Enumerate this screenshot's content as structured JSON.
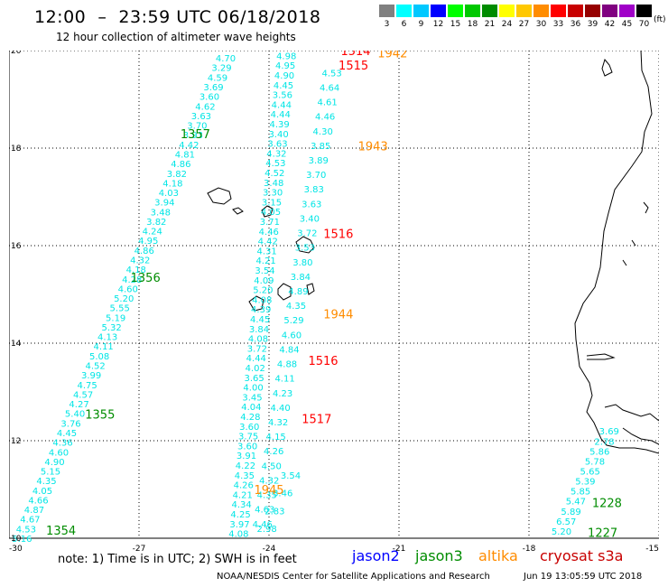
{
  "header": {
    "title": "12:00  –  23:59 UTC 06/18/2018",
    "subtitle": "12 hour collection of altimeter wave heights"
  },
  "colorbar": {
    "unit": "(ft)",
    "items": [
      {
        "label": "3",
        "color": "#808080"
      },
      {
        "label": "6",
        "color": "#00ffff"
      },
      {
        "label": "9",
        "color": "#00c8ff"
      },
      {
        "label": "12",
        "color": "#0000ff"
      },
      {
        "label": "15",
        "color": "#00ff00"
      },
      {
        "label": "18",
        "color": "#00c800"
      },
      {
        "label": "21",
        "color": "#008c00"
      },
      {
        "label": "24",
        "color": "#ffff00"
      },
      {
        "label": "27",
        "color": "#ffc800"
      },
      {
        "label": "30",
        "color": "#ff8c00"
      },
      {
        "label": "33",
        "color": "#ff0000"
      },
      {
        "label": "36",
        "color": "#c80000"
      },
      {
        "label": "39",
        "color": "#960000"
      },
      {
        "label": "42",
        "color": "#800080"
      },
      {
        "label": "45",
        "color": "#a000c8"
      },
      {
        "label": "70",
        "color": "#000000"
      }
    ]
  },
  "map": {
    "lon_range": [
      -30,
      -15
    ],
    "lat_range": [
      10,
      20
    ],
    "x_ticks": [
      "-30",
      "-27",
      "-24",
      "-21",
      "-18",
      "-15"
    ],
    "y_ticks": [
      "10",
      "12",
      "14",
      "16",
      "18",
      "20"
    ],
    "track_color": "#00e5e5",
    "tracks": [
      {
        "lon_start": -29.7,
        "lat_start": 10.0,
        "lon_end": -25.0,
        "lat_end": 19.85,
        "values": [
          "5.16",
          "4.53",
          "4.67",
          "4.87",
          "4.66",
          "4.05",
          "4.35",
          "5.15",
          "4.90",
          "4.60",
          "4.36",
          "4.45",
          "3.76",
          "5.40",
          "4.27",
          "4.57",
          "4.75",
          "3.99",
          "4.52",
          "5.08",
          "4.11",
          "4.13",
          "5.32",
          "5.19",
          "5.55",
          "5.20",
          "4.60",
          "4.28",
          "4.18",
          "4.32",
          "4.86",
          "4.95",
          "4.24",
          "3.82",
          "3.48",
          "3.94",
          "4.03",
          "4.18",
          "3.82",
          "4.86",
          "4.81",
          "4.42",
          "3.93",
          "3.70",
          "3.63",
          "4.62",
          "3.60",
          "3.69",
          "4.59",
          "3.29",
          "4.70"
        ]
      },
      {
        "lon_start": -24.7,
        "lat_start": 10.1,
        "lon_end": -23.6,
        "lat_end": 19.9,
        "values": [
          "4.08",
          "3.97",
          "4.25",
          "4.34",
          "4.21",
          "4.26",
          "4.35",
          "4.22",
          "3.91",
          "3.60",
          "3.75",
          "3.60",
          "4.28",
          "4.04",
          "3.45",
          "4.00",
          "3.65",
          "4.02",
          "4.44",
          "3.72",
          "4.08",
          "3.84",
          "4.45",
          "4.39",
          "4.08",
          "5.20",
          "4.09",
          "3.54",
          "4.21",
          "4.31",
          "4.42",
          "4.46",
          "3.71",
          "4.05",
          "3.15",
          "3.30",
          "3.48",
          "4.52",
          "4.53",
          "4.32",
          "3.63",
          "3.40",
          "4.39",
          "4.44",
          "4.44",
          "3.56",
          "4.45",
          "4.90",
          "4.95",
          "4.98"
        ]
      },
      {
        "lon_start": -24.15,
        "lat_start": 10.3,
        "lon_end": -22.55,
        "lat_end": 19.55,
        "values": [
          "4.46",
          "4.63",
          "4.35",
          "4.32",
          "4.50",
          "4.26",
          "4.15",
          "4.32",
          "4.40",
          "4.23",
          "4.11",
          "4.88",
          "4.84",
          "4.60",
          "5.29",
          "4.35",
          "4.89",
          "3.84",
          "3.80",
          "3.53",
          "3.72",
          "3.40",
          "3.63",
          "3.83",
          "3.70",
          "3.89",
          "3.85",
          "4.30",
          "4.46",
          "4.61",
          "4.64",
          "4.53"
        ]
      },
      {
        "lon_start": -24.05,
        "lat_start": 10.2,
        "lon_end": -23.5,
        "lat_end": 11.3,
        "values": [
          "2.98",
          "2.83",
          "3.46",
          "3.54"
        ]
      },
      {
        "lon_start": -17.25,
        "lat_start": 10.15,
        "lon_end": -16.15,
        "lat_end": 12.2,
        "values": [
          "5.20",
          "6.57",
          "5.89",
          "5.47",
          "5.85",
          "5.39",
          "5.65",
          "5.78",
          "5.86",
          "2.78",
          "3.69"
        ]
      }
    ],
    "labels": [
      {
        "text": "1354",
        "lon": -28.8,
        "lat": 10.17,
        "color": "#008c00"
      },
      {
        "text": "1355",
        "lon": -27.9,
        "lat": 12.55,
        "color": "#008c00"
      },
      {
        "text": "1356",
        "lon": -26.85,
        "lat": 15.35,
        "color": "#008c00"
      },
      {
        "text": "1357",
        "lon": -25.7,
        "lat": 18.3,
        "color": "#008c00"
      },
      {
        "text": "1228",
        "lon": -16.2,
        "lat": 10.73,
        "color": "#008c00"
      },
      {
        "text": "1227",
        "lon": -16.3,
        "lat": 10.12,
        "color": "#008c00"
      },
      {
        "text": "1942",
        "lon": -21.15,
        "lat": 19.95,
        "color": "#ff8c00"
      },
      {
        "text": "1943",
        "lon": -21.6,
        "lat": 18.05,
        "color": "#ff8c00"
      },
      {
        "text": "1944",
        "lon": -22.4,
        "lat": 14.6,
        "color": "#ff8c00"
      },
      {
        "text": "1945",
        "lon": -24.0,
        "lat": 11.0,
        "color": "#ff8c00"
      },
      {
        "text": "1514",
        "lon": -22.0,
        "lat": 20.0,
        "color": "#ff0000"
      },
      {
        "text": "1515",
        "lon": -22.05,
        "lat": 19.7,
        "color": "#ff0000"
      },
      {
        "text": "1516",
        "lon": -22.4,
        "lat": 16.25,
        "color": "#ff0000"
      },
      {
        "text": "1516",
        "lon": -22.75,
        "lat": 13.65,
        "color": "#ff0000"
      },
      {
        "text": "1517",
        "lon": -22.9,
        "lat": 12.45,
        "color": "#ff0000"
      }
    ]
  },
  "footer": {
    "note": "note:  1) Time is in UTC;  2) SWH is in feet",
    "satellites": [
      {
        "name": "jason2",
        "color": "#0000ff"
      },
      {
        "name": "jason3",
        "color": "#008c00"
      },
      {
        "name": "altika",
        "color": "#ff8c00"
      },
      {
        "name": "cryosat s3a",
        "color": "#c80000"
      }
    ],
    "credit": "NOAA/NESDIS Center for Satellite Applications and Research",
    "timestamp": "Jun 19 13:05:59 UTC 2018"
  }
}
